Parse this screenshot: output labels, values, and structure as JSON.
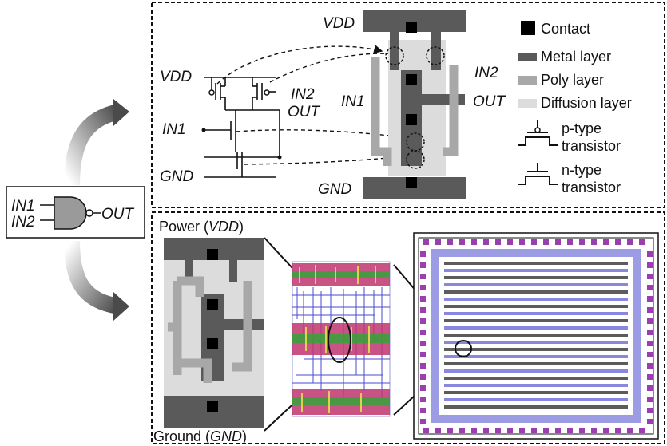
{
  "gate": {
    "in1": "IN1",
    "in2": "IN2",
    "out": "OUT"
  },
  "schematic": {
    "vdd": "VDD",
    "gnd": "GND",
    "in1": "IN1",
    "in2": "IN2",
    "out": "OUT"
  },
  "stick_layout": {
    "vdd": "VDD",
    "gnd": "GND",
    "in1": "IN1",
    "in2": "IN2",
    "out": "OUT"
  },
  "legend": {
    "contact": "Contact",
    "metal": "Metal layer",
    "poly": "Poly layer",
    "diffusion": "Diffusion layer",
    "ptype_line1": "p-type",
    "ptype_line2": "transistor",
    "ntype_line1": "n-type",
    "ntype_line2": "transistor"
  },
  "physical": {
    "power_prefix": "Power (",
    "power_name": "VDD",
    "power_suffix": ")",
    "ground_prefix": "Ground (",
    "ground_name": "GND",
    "ground_suffix": ")"
  },
  "colors": {
    "metal": "#5a5a5a",
    "poly": "#a8a8a8",
    "diffusion": "#dcdcdc",
    "contact": "#000000",
    "arrow": "#555555",
    "pad": "#9b3fb0",
    "route_blue": "#4a4ad0"
  }
}
